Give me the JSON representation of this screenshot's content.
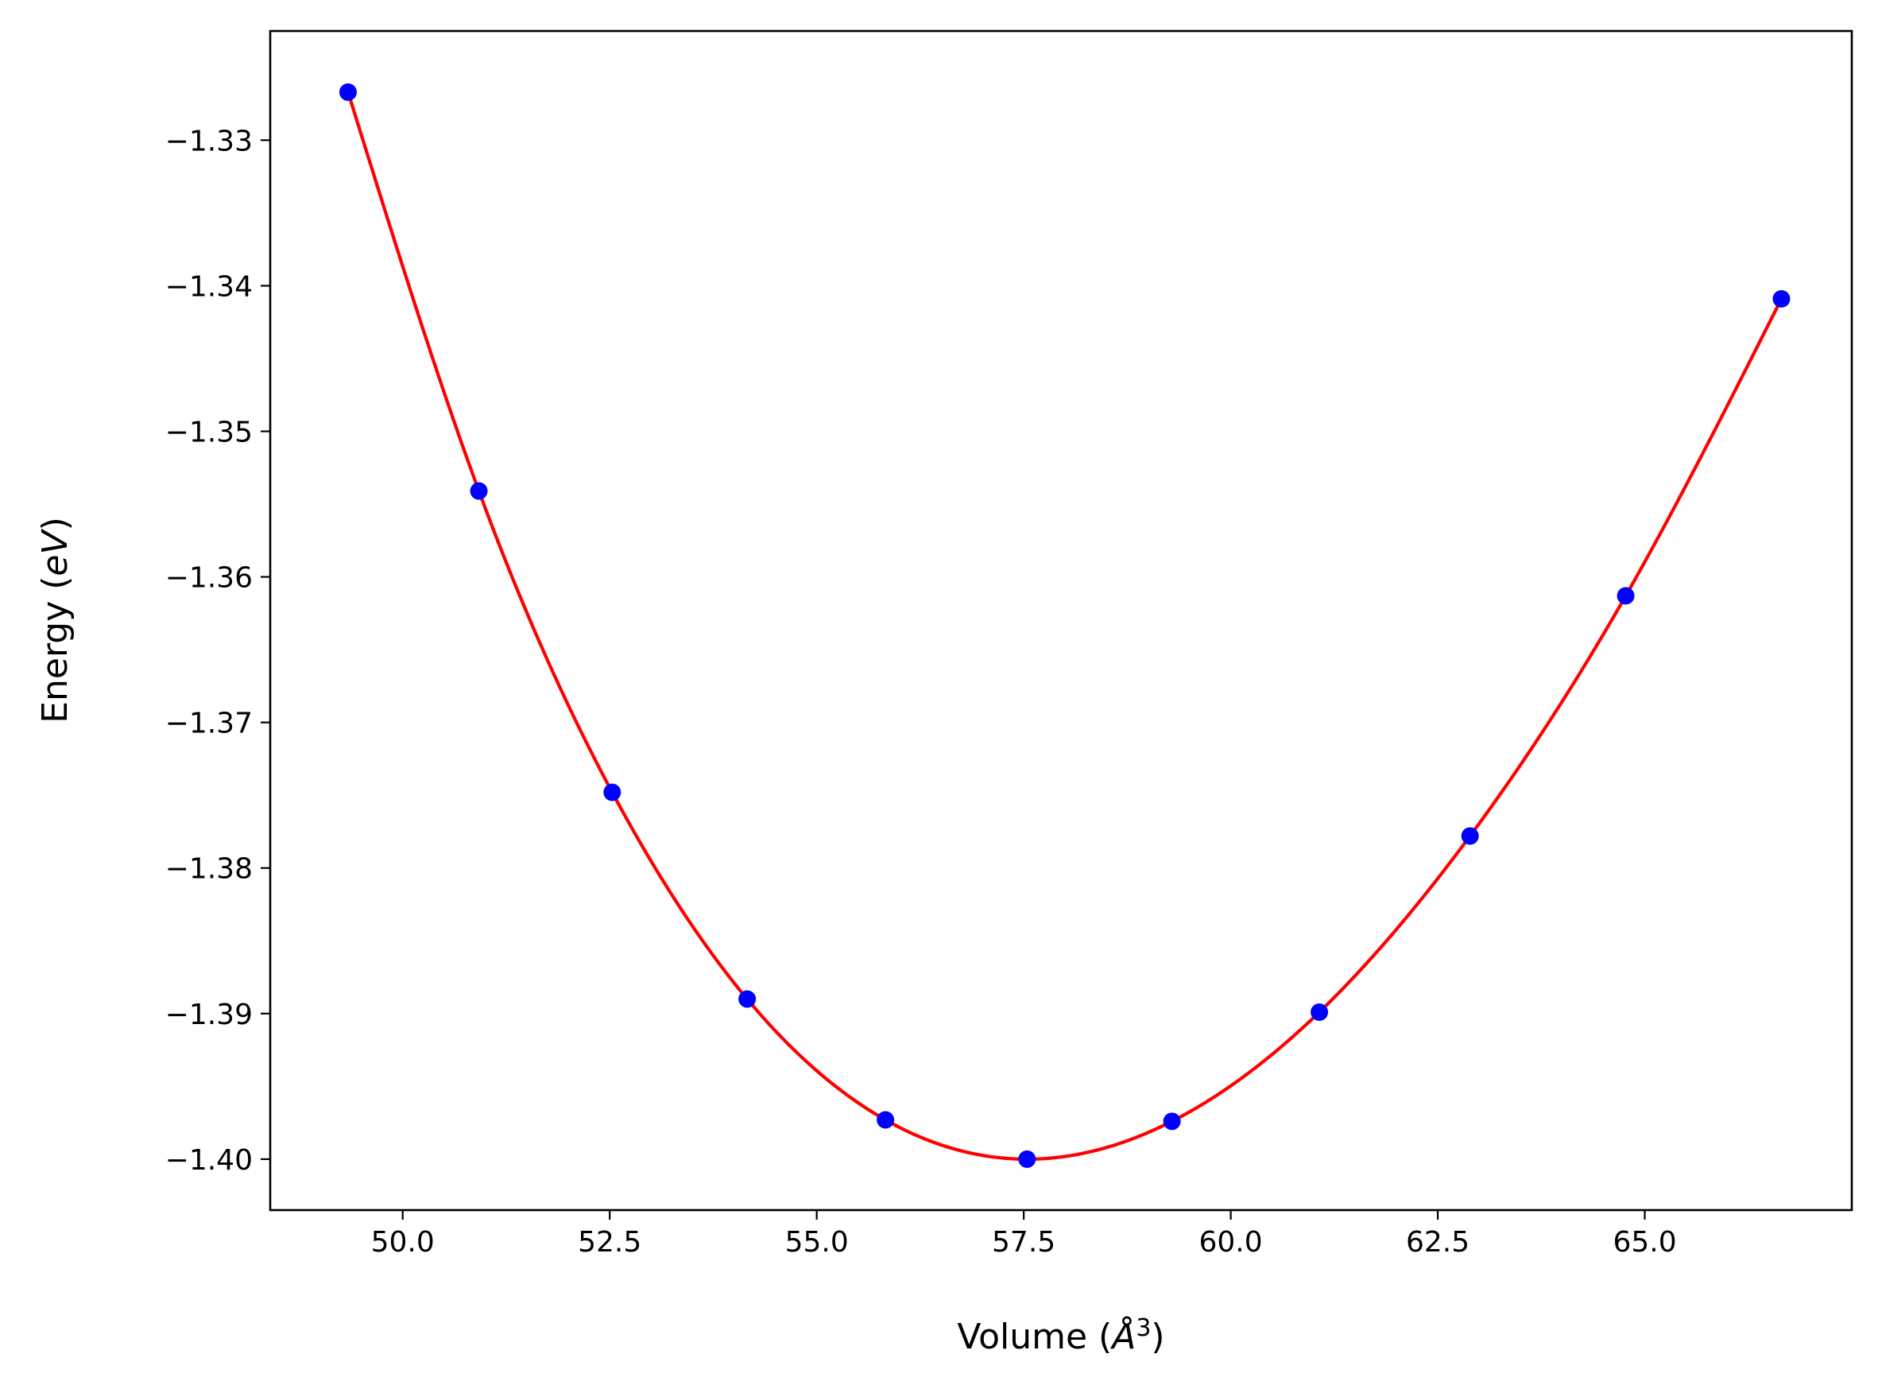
{
  "chart_data": {
    "type": "scatter",
    "xlabel": "Volume",
    "xlabel_unit": "Å",
    "xlabel_unit_exp": "3",
    "ylabel": "Energy",
    "ylabel_unit": "eV",
    "xlim": [
      48.4,
      67.5
    ],
    "ylim": [
      -1.4035,
      -1.3225
    ],
    "xticks": [
      50.0,
      52.5,
      55.0,
      57.5,
      60.0,
      62.5,
      65.0
    ],
    "xtick_labels": [
      "50.0",
      "52.5",
      "55.0",
      "57.5",
      "60.0",
      "62.5",
      "65.0"
    ],
    "yticks": [
      -1.33,
      -1.34,
      -1.35,
      -1.36,
      -1.37,
      -1.38,
      -1.39,
      -1.4
    ],
    "ytick_labels": [
      "−1.33",
      "−1.34",
      "−1.35",
      "−1.36",
      "−1.37",
      "−1.38",
      "−1.39",
      "−1.40"
    ],
    "grid": false,
    "series": [
      {
        "kind": "points",
        "color": "#0000ff",
        "x": [
          49.34,
          50.92,
          52.53,
          54.16,
          55.83,
          57.54,
          59.29,
          61.07,
          62.89,
          64.77,
          66.65
        ],
        "y": [
          -1.3267,
          -1.3541,
          -1.3748,
          -1.389,
          -1.3973,
          -1.4,
          -1.3974,
          -1.3899,
          -1.3778,
          -1.3613,
          -1.3409
        ]
      },
      {
        "kind": "fit-curve",
        "color": "#ff0000",
        "x": [
          49.34,
          50.92,
          52.53,
          54.16,
          55.83,
          57.54,
          59.29,
          61.07,
          62.89,
          64.77,
          66.65
        ],
        "y": [
          -1.3267,
          -1.3541,
          -1.3748,
          -1.389,
          -1.3973,
          -1.4,
          -1.3974,
          -1.3899,
          -1.3778,
          -1.3613,
          -1.3409
        ]
      }
    ]
  }
}
